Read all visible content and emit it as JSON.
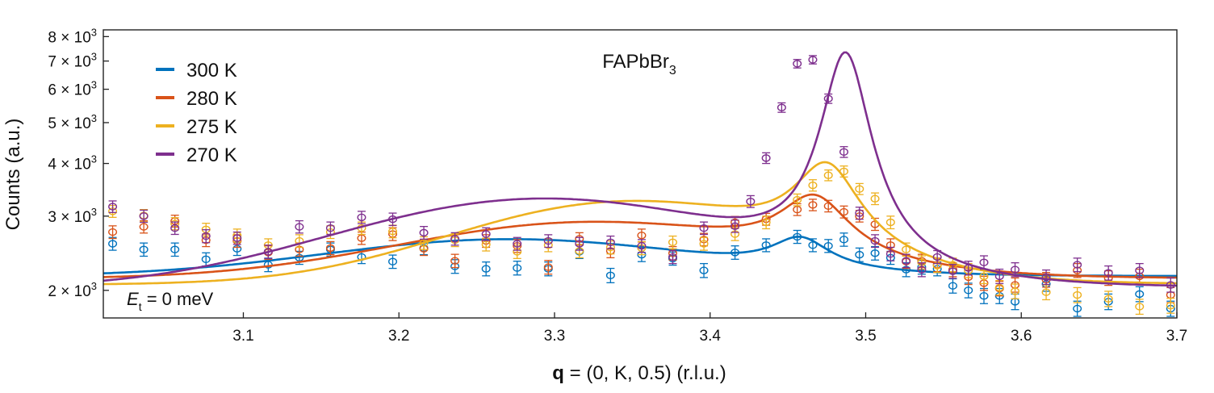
{
  "chart_data": {
    "type": "scatter",
    "title": "FAPbBr",
    "title_subscript": "3",
    "xlabel_bold": "q",
    "xlabel_rest": " = (0, K, 0.5) (r.l.u.)",
    "ylabel": "Counts (a.u.)",
    "annotation_var": "E",
    "annotation_sub": "t",
    "annotation_rest": " = 0 meV",
    "xlim": [
      3.01,
      3.7
    ],
    "ylim": [
      1720,
      8300
    ],
    "yscale": "log",
    "legend_position": "top-left",
    "grid": false,
    "xticks": [
      3.1,
      3.2,
      3.3,
      3.4,
      3.5,
      3.6,
      3.7
    ],
    "xtick_labels": [
      "3.1",
      "3.2",
      "3.3",
      "3.4",
      "3.5",
      "3.6",
      "3.7"
    ],
    "yticks": [
      {
        "value": 2000,
        "mant": "2",
        "exp": "3"
      },
      {
        "value": 3000,
        "mant": "3",
        "exp": "3"
      },
      {
        "value": 4000,
        "mant": "4",
        "exp": "3"
      },
      {
        "value": 5000,
        "mant": "5",
        "exp": "3"
      },
      {
        "value": 6000,
        "mant": "6",
        "exp": "3"
      },
      {
        "value": 7000,
        "mant": "7",
        "exp": "3"
      },
      {
        "value": 8000,
        "mant": "8",
        "exp": "3"
      }
    ],
    "series": [
      {
        "name": "300 K",
        "color": "#0072BD",
        "x": [
          3.016,
          3.036,
          3.056,
          3.076,
          3.096,
          3.116,
          3.136,
          3.156,
          3.176,
          3.196,
          3.216,
          3.236,
          3.256,
          3.276,
          3.296,
          3.316,
          3.336,
          3.356,
          3.376,
          3.396,
          3.416,
          3.436,
          3.456,
          3.466,
          3.476,
          3.486,
          3.496,
          3.506,
          3.516,
          3.526,
          3.536,
          3.546,
          3.556,
          3.566,
          3.576,
          3.586,
          3.596,
          3.616,
          3.636,
          3.656,
          3.676,
          3.696
        ],
        "y": [
          2580,
          2500,
          2500,
          2370,
          2510,
          2300,
          2390,
          2500,
          2400,
          2340,
          2520,
          2280,
          2250,
          2260,
          2250,
          2470,
          2170,
          2430,
          2380,
          2230,
          2460,
          2560,
          2680,
          2560,
          2550,
          2640,
          2430,
          2450,
          2390,
          2240,
          2270,
          2250,
          2050,
          2000,
          1940,
          1940,
          1880,
          2070,
          1810,
          1880,
          1960,
          1810
        ],
        "err": [
          90,
          90,
          90,
          85,
          90,
          85,
          85,
          90,
          85,
          85,
          90,
          85,
          85,
          85,
          85,
          90,
          85,
          90,
          85,
          85,
          90,
          90,
          95,
          90,
          90,
          95,
          90,
          90,
          85,
          85,
          85,
          85,
          80,
          80,
          80,
          80,
          80,
          80,
          75,
          80,
          80,
          75
        ],
        "fit": {
          "A": 2160,
          "B": 480,
          "q0": 3.27,
          "s": 0.16,
          "C": 400,
          "qc": 3.458,
          "wc": 0.022
        }
      },
      {
        "name": "280 K",
        "color": "#D95319",
        "x": [
          3.016,
          3.036,
          3.056,
          3.076,
          3.096,
          3.116,
          3.136,
          3.156,
          3.176,
          3.196,
          3.216,
          3.236,
          3.256,
          3.276,
          3.296,
          3.316,
          3.336,
          3.356,
          3.376,
          3.396,
          3.416,
          3.436,
          3.456,
          3.466,
          3.476,
          3.486,
          3.496,
          3.506,
          3.516,
          3.526,
          3.536,
          3.546,
          3.556,
          3.566,
          3.576,
          3.586,
          3.596,
          3.616,
          3.636,
          3.656,
          3.676,
          3.696
        ],
        "y": [
          2750,
          2830,
          2920,
          2630,
          2620,
          2460,
          2500,
          2520,
          2660,
          2720,
          2510,
          2350,
          2620,
          2550,
          2270,
          2650,
          2480,
          2700,
          2450,
          2640,
          2900,
          2950,
          3110,
          3190,
          3170,
          3070,
          3000,
          2870,
          2560,
          2340,
          2350,
          2300,
          2240,
          2150,
          2080,
          2020,
          2060,
          2120,
          2230,
          2140,
          2160,
          1950
        ],
        "err": [
          95,
          95,
          95,
          90,
          90,
          90,
          90,
          90,
          90,
          95,
          90,
          85,
          90,
          90,
          85,
          90,
          90,
          95,
          90,
          90,
          95,
          95,
          100,
          100,
          100,
          100,
          95,
          95,
          90,
          85,
          85,
          85,
          85,
          85,
          80,
          80,
          80,
          85,
          85,
          85,
          85,
          80
        ],
        "fit": {
          "A": 2130,
          "B": 750,
          "q0": 3.32,
          "s": 0.16,
          "C": 920,
          "qc": 3.467,
          "wc": 0.026
        }
      },
      {
        "name": "275 K",
        "color": "#EDB120",
        "x": [
          3.016,
          3.036,
          3.056,
          3.076,
          3.096,
          3.116,
          3.136,
          3.156,
          3.176,
          3.196,
          3.216,
          3.236,
          3.256,
          3.276,
          3.296,
          3.316,
          3.336,
          3.356,
          3.376,
          3.396,
          3.416,
          3.436,
          3.456,
          3.466,
          3.476,
          3.486,
          3.496,
          3.506,
          3.516,
          3.526,
          3.536,
          3.546,
          3.556,
          3.566,
          3.576,
          3.586,
          3.596,
          3.616,
          3.636,
          3.656,
          3.676,
          3.696
        ],
        "y": [
          3080,
          3010,
          2880,
          2790,
          2700,
          2560,
          2620,
          2750,
          2810,
          2760,
          2590,
          2630,
          2570,
          2470,
          2560,
          2480,
          2530,
          2520,
          2600,
          2580,
          2720,
          2900,
          3280,
          3550,
          3750,
          3830,
          3480,
          3300,
          2900,
          2500,
          2330,
          2290,
          2300,
          2230,
          2160,
          2030,
          1990,
          1980,
          1950,
          1910,
          1830,
          1840
        ],
        "err": [
          100,
          100,
          95,
          95,
          95,
          90,
          90,
          95,
          95,
          95,
          90,
          90,
          90,
          90,
          90,
          90,
          90,
          90,
          90,
          90,
          95,
          100,
          105,
          110,
          110,
          115,
          105,
          105,
          100,
          90,
          85,
          85,
          85,
          85,
          85,
          80,
          80,
          80,
          80,
          80,
          75,
          75
        ],
        "fit": {
          "A": 2060,
          "B": 1150,
          "q0": 3.345,
          "s": 0.145,
          "C": 1450,
          "qc": 3.475,
          "wc": 0.024
        }
      },
      {
        "name": "270 K",
        "color": "#7E2F8E",
        "x": [
          3.016,
          3.036,
          3.056,
          3.076,
          3.096,
          3.116,
          3.136,
          3.156,
          3.176,
          3.196,
          3.216,
          3.236,
          3.256,
          3.276,
          3.296,
          3.316,
          3.336,
          3.356,
          3.376,
          3.396,
          3.416,
          3.426,
          3.436,
          3.446,
          3.456,
          3.466,
          3.476,
          3.486,
          3.496,
          3.506,
          3.516,
          3.526,
          3.536,
          3.546,
          3.556,
          3.566,
          3.576,
          3.586,
          3.596,
          3.616,
          3.636,
          3.656,
          3.676,
          3.696
        ],
        "y": [
          3160,
          3000,
          2810,
          2690,
          2660,
          2470,
          2830,
          2810,
          2980,
          2950,
          2740,
          2650,
          2720,
          2580,
          2620,
          2580,
          2600,
          2550,
          2400,
          2810,
          2840,
          3250,
          4120,
          5430,
          6900,
          7050,
          5700,
          4260,
          3050,
          2620,
          2440,
          2350,
          2240,
          2400,
          2220,
          2260,
          2330,
          2160,
          2240,
          2150,
          2300,
          2200,
          2230,
          2060
        ],
        "err": [
          100,
          100,
          95,
          95,
          90,
          90,
          95,
          95,
          100,
          100,
          95,
          90,
          95,
          90,
          90,
          90,
          90,
          90,
          85,
          95,
          95,
          105,
          120,
          140,
          160,
          160,
          145,
          125,
          100,
          90,
          90,
          85,
          85,
          85,
          85,
          85,
          85,
          85,
          85,
          85,
          85,
          85,
          85,
          80
        ],
        "fit": {
          "A": 2020,
          "B": 1250,
          "q0": 3.29,
          "s": 0.17,
          "C": 5000,
          "qc": 3.487,
          "wc": 0.016
        }
      }
    ]
  }
}
